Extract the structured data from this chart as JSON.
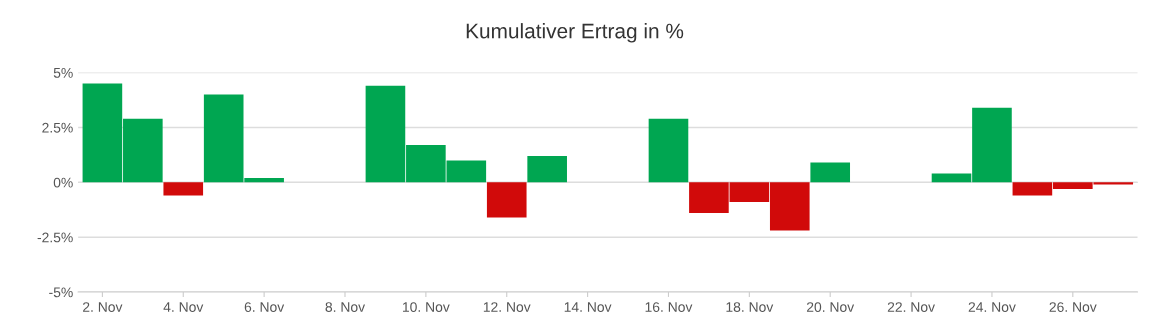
{
  "chart_data": {
    "type": "bar",
    "title": "Kumulativer Ertrag in %",
    "categories": [
      "2. Nov",
      null,
      "4. Nov",
      null,
      "6. Nov",
      null,
      "8. Nov",
      null,
      "10. Nov",
      null,
      "12. Nov",
      null,
      "14. Nov",
      null,
      "16. Nov",
      null,
      "18. Nov",
      null,
      "20. Nov",
      null,
      "22. Nov",
      null,
      "24. Nov",
      null,
      "26. Nov",
      null
    ],
    "values": [
      4.5,
      2.9,
      -0.6,
      4.0,
      0.2,
      null,
      null,
      4.4,
      1.7,
      1.0,
      -1.6,
      1.2,
      null,
      null,
      2.9,
      -1.4,
      -0.9,
      -2.2,
      0.9,
      null,
      null,
      0.4,
      3.4,
      -0.6,
      -0.3,
      -0.1
    ],
    "colors": [
      "#00a651",
      "#00a651",
      "#d10a0a",
      "#00a651",
      "#00a651",
      "#00a651",
      "#00a651",
      "#00a651",
      "#00a651",
      "#00a651",
      "#d10a0a",
      "#00a651",
      "#00a651",
      "#00a651",
      "#00a651",
      "#d10a0a",
      "#d10a0a",
      "#d10a0a",
      "#00a651",
      "#00a651",
      "#00a651",
      "#00a651",
      "#00a651",
      "#d10a0a",
      "#d10a0a",
      "#d10a0a"
    ],
    "ylim": [
      -5,
      5
    ],
    "yticks": [
      {
        "value": -5,
        "label": "-5%"
      },
      {
        "value": -2.5,
        "label": "-2.5%"
      },
      {
        "value": 0,
        "label": "0%"
      },
      {
        "value": 2.5,
        "label": "2.5%"
      },
      {
        "value": 5,
        "label": "5%"
      }
    ],
    "grid": "y",
    "legend": false
  }
}
